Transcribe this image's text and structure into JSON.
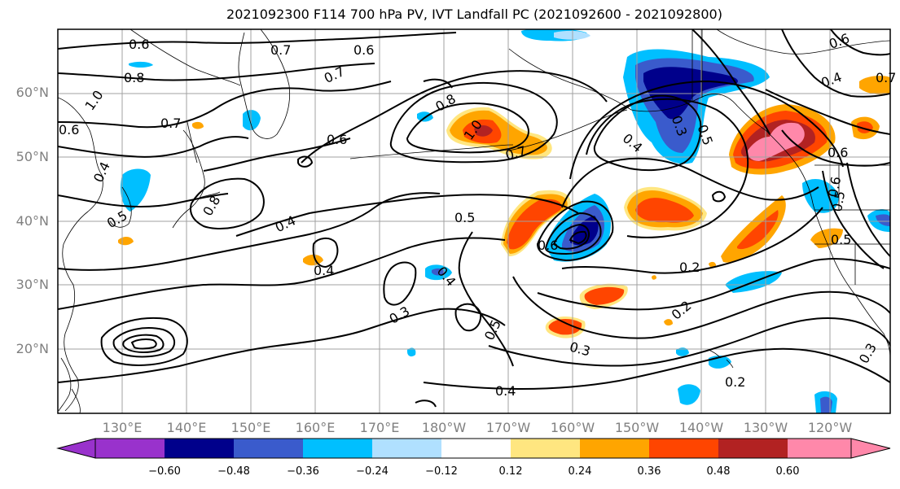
{
  "title": "2021092300 F114 700 hPa PV, IVT Landfall PC (2021092600 - 2021092800)",
  "lat_labels": [
    "60°N",
    "50°N",
    "40°N",
    "30°N",
    "20°N"
  ],
  "lon_labels": [
    "130°E",
    "140°E",
    "150°E",
    "160°E",
    "170°E",
    "180°W",
    "170°W",
    "160°W",
    "150°W",
    "140°W",
    "130°W",
    "120°W"
  ],
  "colorbar": {
    "colors": [
      "#9932cc",
      "#00008b",
      "#3a5bcc",
      "#00bfff",
      "#b0e0ff",
      "#ffffff",
      "#ffe680",
      "#ffa500",
      "#ff4500",
      "#b22222",
      "#ff88aa"
    ],
    "tick_labels": [
      "−0.60",
      "−0.48",
      "−0.36",
      "−0.24",
      "−0.12",
      "0.12",
      "0.24",
      "0.36",
      "0.48",
      "0.60"
    ]
  },
  "contour_labels": [
    "0.6",
    "0.7",
    "0.6",
    "0.8",
    "1.0",
    "0.6",
    "0.7",
    "0.7",
    "0.8",
    "1.0",
    "0.6",
    "0.7",
    "0.4",
    "0.5",
    "0.8",
    "0.4",
    "0.4",
    "0.5",
    "0.6",
    "0.4",
    "0.3",
    "0.5",
    "0.3",
    "0.4",
    "0.4",
    "0.3",
    "0.5",
    "0.2",
    "0.2",
    "0.6",
    "0.6",
    "0.5",
    "0.3",
    "0.4",
    "0.6",
    "0.7",
    "0.5",
    "0.2"
  ],
  "colors": {
    "frame": "#000000",
    "grid": "#a0a0a0",
    "contour": "#000000",
    "coast": "#000000",
    "axis_label": "#808080"
  }
}
